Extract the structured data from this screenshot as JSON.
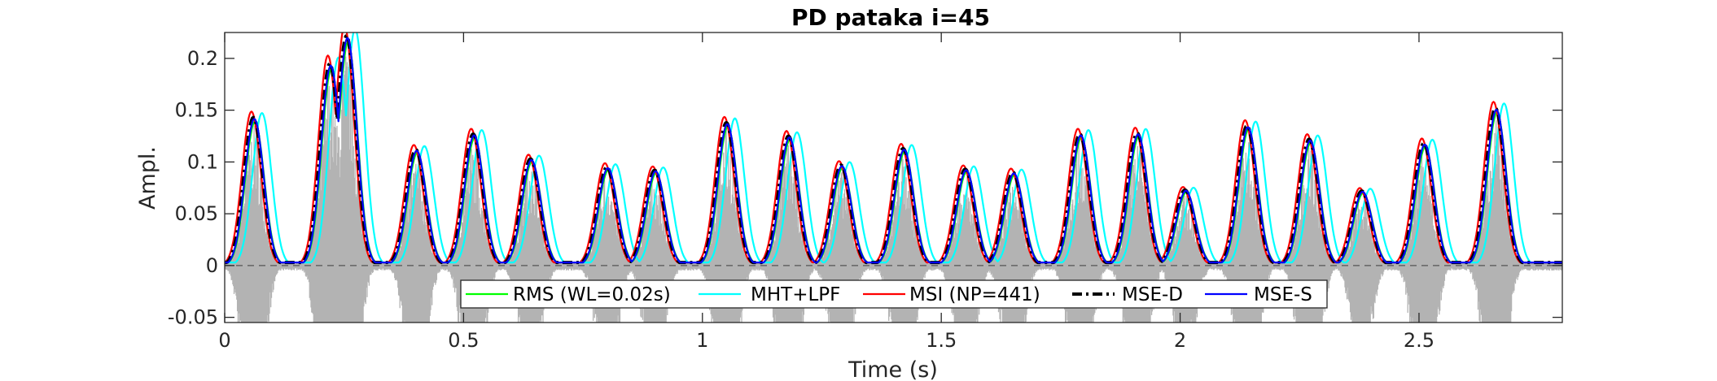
{
  "chart_data": {
    "type": "line",
    "title": "PD pataka i=45",
    "xlabel": "Time (s)",
    "ylabel": "Ampl.",
    "xlim": [
      0,
      2.8
    ],
    "ylim": [
      -0.055,
      0.225
    ],
    "xticks": [
      0,
      0.5,
      1,
      1.5,
      2,
      2.5
    ],
    "xtick_labels": [
      "0",
      "0.5",
      "1",
      "1.5",
      "2",
      "2.5"
    ],
    "yticks": [
      -0.05,
      0,
      0.05,
      0.1,
      0.15,
      0.2
    ],
    "ytick_labels": [
      "-0.05",
      "0",
      "0.05",
      "0.1",
      "0.15",
      "0.2"
    ],
    "grid": false,
    "box": true,
    "legend_location": "bottom-center",
    "zero_line": true,
    "signal_color": "#b3b3b3",
    "syllable_peaks": [
      {
        "t": 0.06,
        "a": 0.143
      },
      {
        "t": 0.22,
        "a": 0.195
      },
      {
        "t": 0.255,
        "a": 0.222
      },
      {
        "t": 0.4,
        "a": 0.112
      },
      {
        "t": 0.52,
        "a": 0.127
      },
      {
        "t": 0.64,
        "a": 0.103
      },
      {
        "t": 0.8,
        "a": 0.095
      },
      {
        "t": 0.9,
        "a": 0.092
      },
      {
        "t": 1.05,
        "a": 0.138
      },
      {
        "t": 1.18,
        "a": 0.125
      },
      {
        "t": 1.29,
        "a": 0.097
      },
      {
        "t": 1.42,
        "a": 0.113
      },
      {
        "t": 1.55,
        "a": 0.093
      },
      {
        "t": 1.65,
        "a": 0.09
      },
      {
        "t": 1.79,
        "a": 0.127
      },
      {
        "t": 1.91,
        "a": 0.128
      },
      {
        "t": 2.01,
        "a": 0.073
      },
      {
        "t": 2.14,
        "a": 0.135
      },
      {
        "t": 2.27,
        "a": 0.122
      },
      {
        "t": 2.38,
        "a": 0.072
      },
      {
        "t": 2.51,
        "a": 0.118
      },
      {
        "t": 2.66,
        "a": 0.152
      }
    ],
    "series": [
      {
        "name": "RMS (WL=0.02s)",
        "color": "#00ff00",
        "width": 2.2,
        "dash": "",
        "dt": 0.003,
        "scale": 0.97
      },
      {
        "name": "MHT+LPF",
        "color": "#00ffff",
        "width": 2.2,
        "dash": "",
        "dt": 0.018,
        "scale": 1.03
      },
      {
        "name": "MSI (NP=441)",
        "color": "#ff0000",
        "width": 2.2,
        "dash": "",
        "dt": -0.004,
        "scale": 1.04
      },
      {
        "name": "MSE-D",
        "color": "#000000",
        "width": 4,
        "dash": "12 5 3 5",
        "dt": 0.0,
        "scale": 1.0
      },
      {
        "name": "MSE-S",
        "color": "#0000ff",
        "width": 2.2,
        "dash": "",
        "dt": 0.002,
        "scale": 0.99
      }
    ]
  }
}
